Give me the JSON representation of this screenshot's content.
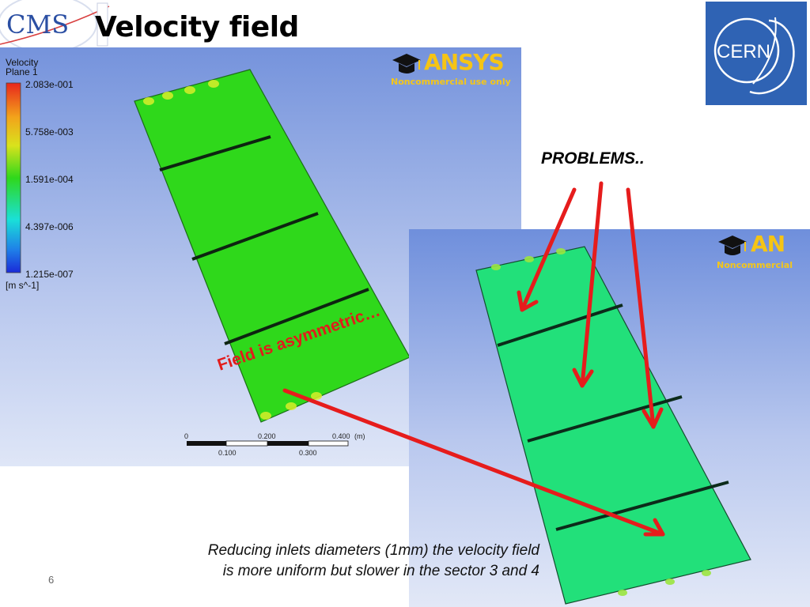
{
  "slide": {
    "title": "Velocity field",
    "page_number": "6",
    "problems_label": "PROBLEMS..",
    "annotation": "Field is asymmetric…",
    "caption_line1": "Reducing inlets diameters (1mm) the velocity field",
    "caption_line2": "is more uniform but slower in the sector 3 and 4",
    "annotation_color": "#e21b1b"
  },
  "logos": {
    "cms": "CMS",
    "cern": "CERN",
    "ansys_brand": "ANSYS",
    "ansys_brand_partial": "AN",
    "ansys_note": "Noncommercial use only",
    "ansys_note_partial": "Noncommercial"
  },
  "legend": {
    "title": "Velocity",
    "subtitle": "Plane 1",
    "ticks": [
      "2.083e-001",
      "5.758e-003",
      "1.591e-004",
      "4.397e-006",
      "1.215e-007"
    ],
    "unit": "[m s^-1]"
  },
  "scale_bar": {
    "top_labels": [
      "0",
      "0.200",
      "0.400",
      "(m)"
    ],
    "bottom_labels": [
      "0.100",
      "0.300"
    ]
  },
  "colors": {
    "sim_green": "#2fd81b",
    "sim_cyan": "#22e07a",
    "background_blue": "#7593dc",
    "cern_blue": "#2f63b4",
    "ansys_yellow": "#f5c415"
  }
}
